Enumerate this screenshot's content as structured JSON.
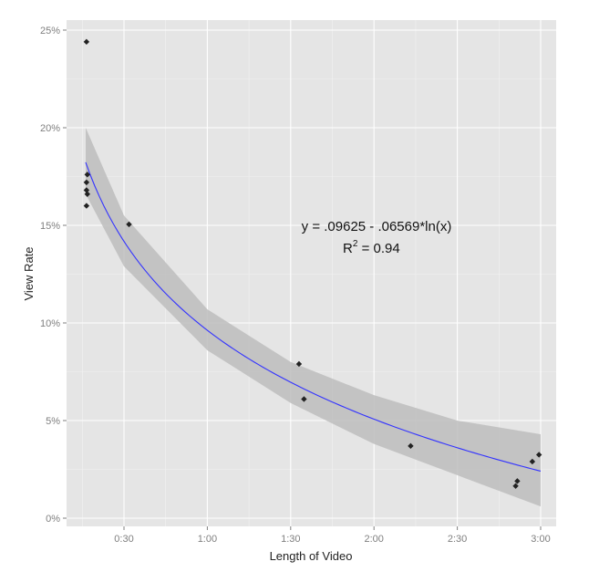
{
  "chart_data": {
    "type": "scatter",
    "title": "",
    "xlabel": "Length of Video",
    "ylabel": "View Rate",
    "x_unit": "minutes",
    "xlim": [
      0.1,
      3.12
    ],
    "ylim": [
      -0.4,
      25.8
    ],
    "x_ticks": [
      0.5,
      1,
      1.5,
      2,
      2.5,
      3
    ],
    "x_tick_labels": [
      "0:30",
      "1:00",
      "1:30",
      "2:00",
      "2:30",
      "3:00"
    ],
    "y_ticks": [
      0,
      5,
      10,
      15,
      20,
      25
    ],
    "y_tick_labels": [
      "0%",
      "5%",
      "10%",
      "15%",
      "20%",
      "25%"
    ],
    "grid": true,
    "points": [
      {
        "x": 0.275,
        "y": 24.4
      },
      {
        "x": 0.28,
        "y": 17.6
      },
      {
        "x": 0.275,
        "y": 17.2
      },
      {
        "x": 0.275,
        "y": 16.8
      },
      {
        "x": 0.28,
        "y": 16.6
      },
      {
        "x": 0.275,
        "y": 16.0
      },
      {
        "x": 0.53,
        "y": 15.05
      },
      {
        "x": 1.55,
        "y": 7.9
      },
      {
        "x": 1.58,
        "y": 6.1
      },
      {
        "x": 2.22,
        "y": 3.7
      },
      {
        "x": 2.86,
        "y": 1.9
      },
      {
        "x": 2.85,
        "y": 1.65
      },
      {
        "x": 2.95,
        "y": 2.9
      },
      {
        "x": 2.99,
        "y": 3.25
      }
    ],
    "fit": {
      "intercept": 0.09625,
      "slope": -0.06569,
      "form": "log",
      "x_range": [
        0.27,
        3.0
      ],
      "color": "#3333ff"
    },
    "band": {
      "x": [
        0.27,
        0.5,
        1,
        1.5,
        2,
        2.5,
        3
      ],
      "upper": [
        20.0,
        15.5,
        10.7,
        8.0,
        6.3,
        5.0,
        4.3
      ],
      "lower": [
        16.6,
        12.9,
        8.6,
        5.9,
        3.8,
        2.2,
        0.6
      ]
    },
    "annotations": {
      "equation": "y = .09625 - .06569*ln(x)",
      "r2_prefix": "R",
      "r2_sup": "2",
      "r2_value": " = 0.94"
    }
  }
}
